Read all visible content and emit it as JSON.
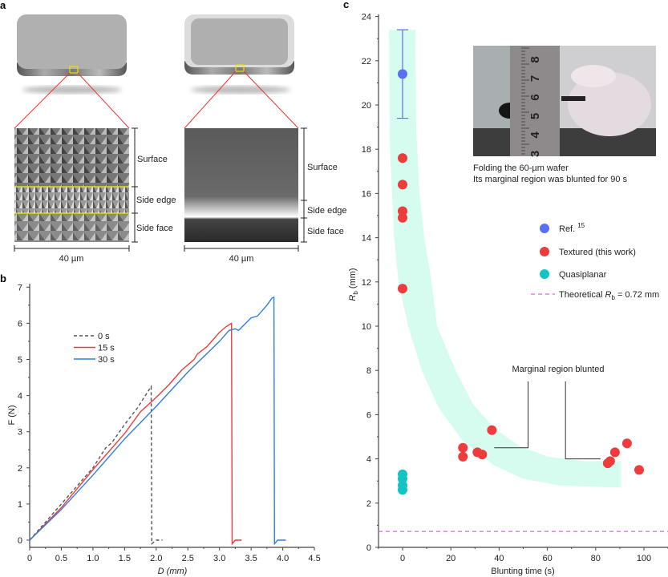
{
  "panel_a": {
    "label": "a",
    "left_image": {
      "regions": [
        "Surface",
        "Side edge",
        "Side face"
      ],
      "scale_bar": "40 µm"
    },
    "right_image": {
      "regions": [
        "Surface",
        "Side edge",
        "Side face"
      ],
      "scale_bar": "40 µm"
    }
  },
  "chart_data": [
    {
      "panel": "b",
      "type": "line",
      "xlabel": "D (mm)",
      "ylabel": "F (N)",
      "xlim": [
        0,
        4.5
      ],
      "ylim": [
        -0.2,
        7
      ],
      "xticks": [
        "0",
        "0.5",
        "1.0",
        "1.5",
        "2.0",
        "2.5",
        "3.0",
        "3.5",
        "4.0",
        "4.5"
      ],
      "yticks": [
        "0",
        "1",
        "2",
        "3",
        "4",
        "5",
        "6",
        "7"
      ],
      "legend_position": "top-left",
      "series": [
        {
          "name": "0 s",
          "color": "#555555",
          "dash": true,
          "x": [
            0,
            0.5,
            1.0,
            1.2,
            1.3,
            1.5,
            1.7,
            1.92,
            1.93,
            2.0,
            2.1
          ],
          "y": [
            0,
            1.0,
            2.0,
            2.55,
            2.7,
            3.2,
            3.65,
            4.25,
            -0.1,
            0,
            0
          ]
        },
        {
          "name": "15 s",
          "color": "#ee3b3b",
          "dash": false,
          "x": [
            0,
            0.5,
            1.0,
            1.5,
            1.75,
            2.0,
            2.2,
            2.4,
            2.6,
            2.65,
            2.8,
            3.0,
            3.1,
            3.19,
            3.2,
            3.25,
            3.35
          ],
          "y": [
            0,
            0.9,
            1.95,
            2.95,
            3.55,
            3.95,
            4.3,
            4.7,
            5.0,
            5.15,
            5.35,
            5.75,
            5.9,
            6.0,
            -0.1,
            0,
            0
          ]
        },
        {
          "name": "30 s",
          "color": "#2f7fe0",
          "dash": false,
          "x": [
            0,
            0.5,
            1.0,
            1.5,
            2.0,
            2.5,
            3.0,
            3.15,
            3.25,
            3.3,
            3.5,
            3.6,
            3.75,
            3.83,
            3.86,
            3.87,
            3.92,
            4.05
          ],
          "y": [
            0,
            0.85,
            1.8,
            2.8,
            3.7,
            4.65,
            5.5,
            5.8,
            5.85,
            5.8,
            6.15,
            6.2,
            6.5,
            6.7,
            6.72,
            -0.1,
            0,
            0
          ]
        }
      ]
    },
    {
      "panel": "c",
      "type": "scatter",
      "xlabel": "Blunting time (s)",
      "ylabel": "Rb (mm)",
      "xlim": [
        -10,
        110
      ],
      "ylim": [
        0,
        24
      ],
      "xticks": [
        "0",
        "20",
        "40",
        "60",
        "80",
        "100"
      ],
      "yticks": [
        "0",
        "2",
        "4",
        "6",
        "8",
        "10",
        "12",
        "14",
        "16",
        "18",
        "20",
        "22",
        "24"
      ],
      "legend_position": "right",
      "series": [
        {
          "name": "Ref. 15",
          "color": "#5a6ff5",
          "x": [
            0
          ],
          "y": [
            21.4
          ],
          "error_low": [
            19.4
          ],
          "error_high": [
            23.4
          ]
        },
        {
          "name": "Textured (this work)",
          "color": "#ee3b3b",
          "x": [
            0,
            0,
            0,
            0,
            0,
            25,
            25,
            31,
            33,
            37,
            85,
            86,
            88,
            93,
            98
          ],
          "y": [
            17.6,
            16.4,
            15.2,
            14.9,
            11.7,
            4.5,
            4.1,
            4.3,
            4.2,
            5.3,
            3.8,
            3.9,
            4.3,
            4.7,
            3.5
          ]
        },
        {
          "name": "Quasiplanar",
          "color": "#14c4c4",
          "x": [
            0,
            0,
            0,
            0
          ],
          "y": [
            3.3,
            3.1,
            2.8,
            2.6
          ]
        }
      ],
      "reference_line": {
        "name": "Theoretical Rb = 0.72 mm",
        "label_prefix": "Theoretical ",
        "label_var": "R",
        "label_sub": "b",
        "label_suffix": " = 0.72 mm",
        "y": 0.72,
        "color": "#e060f0"
      },
      "band_color": "#d6fcef",
      "annotation": "Marginal region blunted",
      "inset_caption": [
        "Folding the 60-µm wafer",
        "Its marginal region was blunted for 90 s"
      ],
      "inset_ruler_numbers": [
        "3",
        "4",
        "5",
        "6",
        "7",
        "8"
      ]
    }
  ],
  "panel_labels": {
    "b": "b",
    "c": "c"
  },
  "legend_ref_sup": "15",
  "legend_ref_text": "Ref."
}
